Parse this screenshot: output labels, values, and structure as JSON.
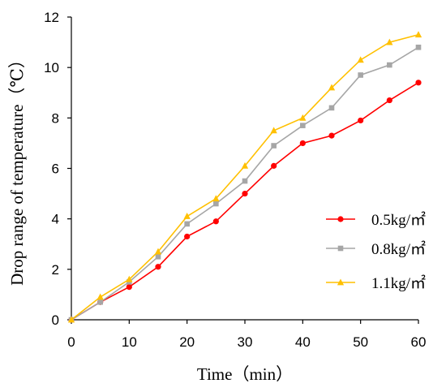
{
  "chart_data": {
    "type": "line",
    "xlabel": "Time（min）",
    "ylabel": "Drop range of temperature（℃）",
    "xlim": [
      0,
      60
    ],
    "ylim": [
      0,
      12
    ],
    "x_ticks": [
      "0",
      "10",
      "20",
      "30",
      "40",
      "50",
      "60"
    ],
    "y_ticks": [
      "0",
      "2",
      "4",
      "6",
      "8",
      "10",
      "12"
    ],
    "grid": false,
    "legend_position": "right",
    "x": [
      0,
      5,
      10,
      15,
      20,
      25,
      30,
      35,
      40,
      45,
      50,
      55,
      60
    ],
    "series": [
      {
        "name": "0.5kg/㎡",
        "color": "#ff0000",
        "marker": "circle",
        "values": [
          0,
          0.7,
          1.3,
          2.1,
          3.3,
          3.9,
          5.0,
          6.1,
          7.0,
          7.3,
          7.9,
          8.7,
          9.4
        ]
      },
      {
        "name": "0.8kg/㎡",
        "color": "#a6a6a6",
        "marker": "square",
        "values": [
          0,
          0.7,
          1.5,
          2.5,
          3.8,
          4.6,
          5.5,
          6.9,
          7.7,
          8.4,
          9.7,
          10.1,
          10.8
        ]
      },
      {
        "name": "1.1kg/㎡",
        "color": "#ffc000",
        "marker": "triangle",
        "values": [
          0,
          0.9,
          1.6,
          2.7,
          4.1,
          4.8,
          6.1,
          7.5,
          8.0,
          9.2,
          10.3,
          11.0,
          11.3
        ]
      }
    ]
  }
}
